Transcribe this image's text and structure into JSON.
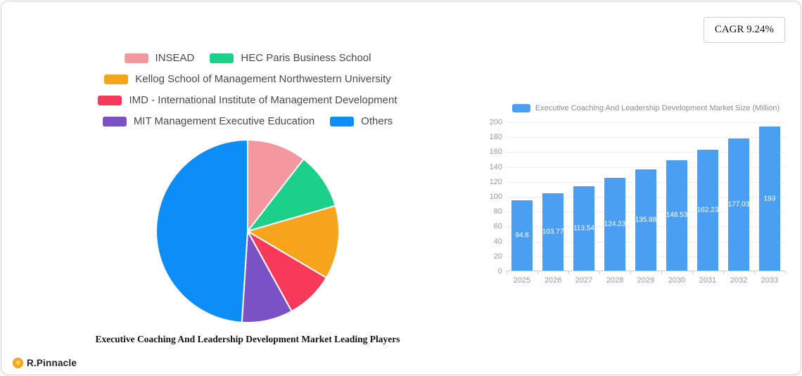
{
  "cagr": {
    "label": "CAGR 9.24%"
  },
  "logo": {
    "text": "R.Pinnacle"
  },
  "chart_data": [
    {
      "type": "pie",
      "title": "Executive Coaching And Leadership Development Market Leading Players",
      "labels": [
        "INSEAD",
        "HEC Paris Business School",
        "Kellog School of Management Northwestern University",
        "IMD - International Institute of Management Development",
        "MIT Management Executive Education",
        "Others"
      ],
      "values": [
        10.5,
        10,
        13,
        8.5,
        9,
        49
      ],
      "colors": [
        "#F2989E",
        "#1CD08A",
        "#F6A41B",
        "#F7395C",
        "#7A52C5",
        "#0D8DF8"
      ],
      "legend_position": "top",
      "start_angle_deg": 0,
      "direction": "clockwise"
    },
    {
      "type": "bar",
      "legend": "Executive Coaching And Leadership Development Market Size (Million)",
      "categories": [
        "2025",
        "2026",
        "2027",
        "2028",
        "2029",
        "2030",
        "2031",
        "2032",
        "2033"
      ],
      "values": [
        94.8,
        103.77,
        113.54,
        124.23,
        135.88,
        148.53,
        162.23,
        177.03,
        193
      ],
      "value_labels": [
        "94.8",
        "103.77",
        "113.54",
        "124.23",
        "135.88",
        "148.53",
        "162.23",
        "177.03",
        "193"
      ],
      "bar_color": "#4B9FF2",
      "ylim": [
        0,
        200
      ],
      "ytick_step": 20,
      "grid": true,
      "legend_position": "top"
    }
  ]
}
